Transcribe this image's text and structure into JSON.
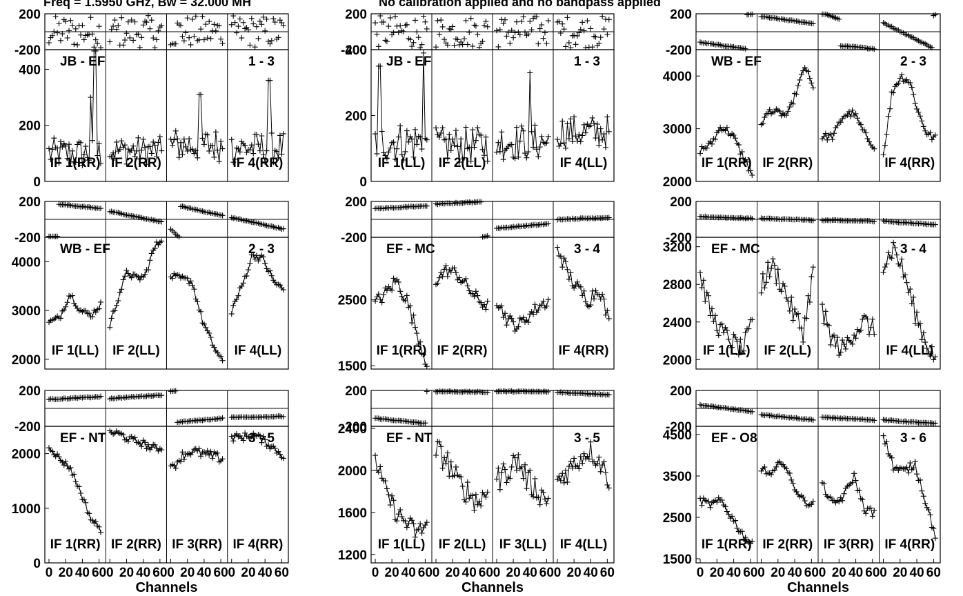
{
  "header": {
    "freq_text": "Freq = 1.5950 GHz, Bw = 32.000 MH",
    "cal_text": "No calibration applied and no bandpass applied"
  },
  "common": {
    "xlabel": "Channels",
    "x_ticks": [
      "0",
      "20",
      "40",
      "60"
    ],
    "phase_ticks": [
      "200",
      "-200"
    ],
    "phase_range": [
      -200,
      200
    ],
    "channels": 64
  },
  "chart_data": [
    {
      "type": "scatter",
      "baseline": "JB - EF",
      "pair": "1 - 3",
      "amp_ylim": [
        0,
        470
      ],
      "amp_ticks": [
        0,
        200,
        400
      ],
      "amp_tick_labels": [
        "0",
        "200",
        "400"
      ],
      "panels": [
        {
          "if": "IF 1(RR)",
          "amp": {
            "base": 100,
            "noise": 55,
            "trend": 0,
            "spikes": [
              [
                55,
                470
              ],
              [
                50,
                300
              ]
            ]
          },
          "phase": {
            "kind": "noise"
          }
        },
        {
          "if": "IF 2(RR)",
          "amp": {
            "base": 110,
            "noise": 50,
            "trend": 0,
            "spikes": []
          },
          "phase": {
            "kind": "noise"
          }
        },
        {
          "if": "",
          "amp": {
            "base": 130,
            "noise": 60,
            "trend": 0,
            "spikes": [
              [
                35,
                310
              ]
            ]
          },
          "phase": {
            "kind": "noise"
          }
        },
        {
          "if": "IF 4(RR)",
          "amp": {
            "base": 120,
            "noise": 55,
            "trend": 0,
            "spikes": [
              [
                45,
                360
              ]
            ]
          },
          "phase": {
            "kind": "noise"
          }
        }
      ]
    },
    {
      "type": "scatter",
      "baseline": "JB - EF",
      "pair": "1 - 3",
      "amp_ylim": [
        0,
        400
      ],
      "amp_ticks": [
        0,
        200,
        400
      ],
      "amp_tick_labels": [
        "0",
        "200",
        "400"
      ],
      "panels": [
        {
          "if": "IF 1(LL)",
          "amp": {
            "base": 120,
            "noise": 60,
            "trend": 0,
            "spikes": [
              [
                5,
                350
              ],
              [
                58,
                390
              ]
            ]
          },
          "phase": {
            "kind": "noise"
          }
        },
        {
          "if": "IF 2(LL)",
          "amp": {
            "base": 110,
            "noise": 55,
            "trend": 0,
            "spikes": []
          },
          "phase": {
            "kind": "noise"
          }
        },
        {
          "if": "",
          "amp": {
            "base": 120,
            "noise": 55,
            "trend": 0,
            "spikes": [
              [
                40,
                330
              ]
            ]
          },
          "phase": {
            "kind": "noise"
          }
        },
        {
          "if": "IF 4(LL)",
          "amp": {
            "base": 150,
            "noise": 50,
            "trend": 0,
            "spikes": []
          },
          "phase": {
            "kind": "noise"
          }
        }
      ]
    },
    {
      "type": "scatter",
      "baseline": "WB - EF",
      "pair": "2 - 3",
      "amp_ylim": [
        2000,
        4500
      ],
      "amp_ticks": [
        2000,
        3000,
        4000
      ],
      "amp_tick_labels": [
        "2000",
        "3000",
        "4000"
      ],
      "panels": [
        {
          "if": "IF 1(RR)",
          "amp": {
            "points": [
              2600,
              2700,
              3050,
              2900,
              2500,
              2100
            ],
            "noise": 80
          },
          "phase": {
            "kind": "slope",
            "start": -120,
            "end": -200,
            "wrap": [
              55,
              190,
              195
            ]
          }
        },
        {
          "if": "IF 2(RR)",
          "amp": {
            "points": [
              3100,
              3350,
              3300,
              3250,
              3700,
              4200,
              3700
            ],
            "noise": 60
          },
          "phase": {
            "kind": "slope",
            "start": 170,
            "end": 90
          }
        },
        {
          "if": "",
          "amp": {
            "points": [
              2850,
              2850,
              3250,
              3300,
              2900,
              2650
            ],
            "noise": 70
          },
          "phase": {
            "kind": "slope",
            "start": -140,
            "end": -190,
            "head": [
              0,
              20,
              210,
              140
            ]
          }
        },
        {
          "if": "IF 4(RR)",
          "amp": {
            "points": [
              2500,
              3700,
              4000,
              3900,
              3300,
              2900,
              2800
            ],
            "noise": 80
          },
          "phase": {
            "kind": "slope",
            "start": 100,
            "end": -200,
            "wrap": [
              60,
              180,
              200
            ]
          }
        }
      ]
    },
    {
      "type": "scatter",
      "baseline": "WB - EF",
      "pair": "2 - 3",
      "amp_ylim": [
        1800,
        4500
      ],
      "amp_ticks": [
        2000,
        3000,
        4000
      ],
      "amp_tick_labels": [
        "2000",
        "3000",
        "4000"
      ],
      "panels": [
        {
          "if": "IF 1(LL)",
          "amp": {
            "points": [
              2750,
              2850,
              3350,
              3000,
              2900,
              3150
            ],
            "noise": 70
          },
          "phase": {
            "kind": "slope",
            "start": 180,
            "end": 120,
            "head": [
              0,
              10,
              -190,
              -190
            ]
          }
        },
        {
          "if": "IF 2(LL)",
          "amp": {
            "points": [
              2700,
              3300,
              3800,
              3650,
              3700,
              4250,
              4500
            ],
            "noise": 80
          },
          "phase": {
            "kind": "slope",
            "start": 90,
            "end": -30
          }
        },
        {
          "if": "",
          "amp": {
            "points": [
              3700,
              3650,
              3600,
              2800,
              2300,
              1900
            ],
            "noise": 70
          },
          "phase": {
            "kind": "slope",
            "start": 170,
            "end": 40,
            "head": [
              0,
              10,
              -110,
              -200
            ]
          }
        },
        {
          "if": "IF 4(LL)",
          "amp": {
            "points": [
              3000,
              3500,
              4150,
              4050,
              3600,
              3400
            ],
            "noise": 80
          },
          "phase": {
            "kind": "slope",
            "start": 20,
            "end": -110
          }
        }
      ]
    },
    {
      "type": "scatter",
      "baseline": "EF - MC",
      "pair": "3 - 4",
      "amp_ylim": [
        1450,
        3450
      ],
      "amp_ticks": [
        1500,
        2500
      ],
      "amp_tick_labels": [
        "1500",
        "2500"
      ],
      "panels": [
        {
          "if": "IF 1(RR)",
          "amp": {
            "points": [
              2450,
              2600,
              2800,
              2500,
              2000,
              1500
            ],
            "noise": 110
          },
          "phase": {
            "kind": "slope",
            "start": 120,
            "end": 150
          }
        },
        {
          "if": "IF 2(RR)",
          "amp": {
            "points": [
              2800,
              2950,
              2900,
              2700,
              2500,
              2400
            ],
            "noise": 100
          },
          "phase": {
            "kind": "slope",
            "start": 170,
            "end": 200,
            "tail": [
              55,
              64,
              -200,
              -180
            ]
          }
        },
        {
          "if": "",
          "amp": {
            "points": [
              2500,
              2200,
              2100,
              2250,
              2400,
              2500
            ],
            "noise": 100
          },
          "phase": {
            "kind": "slope",
            "start": -100,
            "end": -50
          }
        },
        {
          "if": "IF 4(RR)",
          "amp": {
            "points": [
              3300,
              2900,
              2650,
              2500,
              2700,
              2100
            ],
            "noise": 120
          },
          "phase": {
            "kind": "slope",
            "start": 0,
            "end": 20
          }
        }
      ]
    },
    {
      "type": "scatter",
      "baseline": "EF - MC",
      "pair": "3 - 4",
      "amp_ylim": [
        1900,
        3300
      ],
      "amp_ticks": [
        2000,
        2400,
        2800,
        3200
      ],
      "amp_tick_labels": [
        "2000",
        "2400",
        "2800",
        "3200"
      ],
      "panels": [
        {
          "if": "IF 1(LL)",
          "amp": {
            "points": [
              2900,
              2500,
              2300,
              2200,
              2100,
              2400
            ],
            "noise": 100
          },
          "phase": {
            "kind": "slope",
            "start": 30,
            "end": 10
          }
        },
        {
          "if": "IF 2(LL)",
          "amp": {
            "points": [
              2800,
              3000,
              2800,
              2500,
              2300,
              3000
            ],
            "noise": 120
          },
          "phase": {
            "kind": "slope",
            "start": 10,
            "end": -10
          }
        },
        {
          "if": "",
          "amp": {
            "points": [
              2500,
              2200,
              2100,
              2300,
              2400,
              2300
            ],
            "noise": 110
          },
          "phase": {
            "kind": "slope",
            "start": -10,
            "end": -20
          }
        },
        {
          "if": "IF 4(LL)",
          "amp": {
            "points": [
              3000,
              3200,
              2900,
              2500,
              2200,
              2000
            ],
            "noise": 110
          },
          "phase": {
            "kind": "slope",
            "start": -20,
            "end": -60
          }
        }
      ]
    },
    {
      "type": "scatter",
      "baseline": "EF - NT",
      "pair": "3 - 5",
      "amp_ylim": [
        0,
        2500
      ],
      "amp_ticks": [
        0,
        1000,
        2000
      ],
      "amp_tick_labels": [
        "0",
        "1000",
        "2000"
      ],
      "panels": [
        {
          "if": "IF 1(RR)",
          "amp": {
            "points": [
              2150,
              1900,
              1750,
              1300,
              800,
              600
            ],
            "noise": 60
          },
          "phase": {
            "kind": "slope",
            "start": 100,
            "end": 130
          }
        },
        {
          "if": "IF 2(RR)",
          "amp": {
            "points": [
              2400,
              2350,
              2250,
              2200,
              2100,
              2100
            ],
            "noise": 70
          },
          "phase": {
            "kind": "slope",
            "start": 110,
            "end": 150
          }
        },
        {
          "if": "IF 3(RR)",
          "amp": {
            "points": [
              1700,
              1950,
              2050,
              2000,
              1950,
              1900
            ],
            "noise": 90
          },
          "phase": {
            "kind": "slope",
            "start": -160,
            "end": -110,
            "head": [
              0,
              6,
              190,
              195
            ]
          }
        },
        {
          "if": "IF 4(RR)",
          "amp": {
            "points": [
              2300,
              2300,
              2350,
              2250,
              2100,
              1950
            ],
            "noise": 70
          },
          "phase": {
            "kind": "slope",
            "start": -100,
            "end": -90
          }
        }
      ]
    },
    {
      "type": "scatter",
      "baseline": "EF - NT",
      "pair": "3 - 5",
      "amp_ylim": [
        1120,
        2420
      ],
      "amp_ticks": [
        1200,
        1600,
        2000,
        2400
      ],
      "amp_tick_labels": [
        "1200",
        "1600",
        "2000",
        "2400"
      ],
      "panels": [
        {
          "if": "IF 1(LL)",
          "amp": {
            "points": [
              2100,
              1800,
              1600,
              1500,
              1400,
              1500
            ],
            "noise": 90
          },
          "phase": {
            "kind": "slope",
            "start": -110,
            "end": -170,
            "tail": [
              62,
              64,
              190,
              190
            ]
          }
        },
        {
          "if": "IF 2(LL)",
          "amp": {
            "points": [
              2200,
              2100,
              1900,
              1800,
              1700,
              1800
            ],
            "noise": 120
          },
          "phase": {
            "kind": "slope",
            "start": 190,
            "end": 180
          }
        },
        {
          "if": "IF 3(LL)",
          "amp": {
            "points": [
              1900,
              2000,
              2100,
              1900,
              1800,
              1700
            ],
            "noise": 120
          },
          "phase": {
            "kind": "slope",
            "start": 190,
            "end": 185
          }
        },
        {
          "if": "IF 4(LL)",
          "amp": {
            "points": [
              1900,
              2000,
              2100,
              2200,
              2100,
              1900
            ],
            "noise": 110
          },
          "phase": {
            "kind": "slope",
            "start": 180,
            "end": 150
          }
        }
      ]
    },
    {
      "type": "scatter",
      "baseline": "EF - O8",
      "pair": "3 - 6",
      "amp_ylim": [
        1400,
        4700
      ],
      "amp_ticks": [
        1500,
        2500,
        3500,
        4500
      ],
      "amp_tick_labels": [
        "1500",
        "2500",
        "3500",
        "4500"
      ],
      "panels": [
        {
          "if": "IF 1(RR)",
          "amp": {
            "points": [
              2900,
              2800,
              2900,
              2500,
              2100,
              1800
            ],
            "noise": 100
          },
          "phase": {
            "kind": "slope",
            "start": 40,
            "end": -40
          }
        },
        {
          "if": "IF 2(RR)",
          "amp": {
            "points": [
              3700,
              3500,
              3900,
              3300,
              2900,
              2800
            ],
            "noise": 90
          },
          "phase": {
            "kind": "slope",
            "start": -70,
            "end": -130
          }
        },
        {
          "if": "IF 3(RR)",
          "amp": {
            "points": [
              3300,
              2800,
              3000,
              3500,
              2700,
              2600
            ],
            "noise": 100
          },
          "phase": {
            "kind": "slope",
            "start": -100,
            "end": -130
          }
        },
        {
          "if": "IF 4(RR)",
          "amp": {
            "points": [
              4500,
              3700,
              3600,
              3800,
              2900,
              2000
            ],
            "noise": 110
          },
          "phase": {
            "kind": "slope",
            "start": -130,
            "end": -170
          }
        }
      ]
    }
  ]
}
